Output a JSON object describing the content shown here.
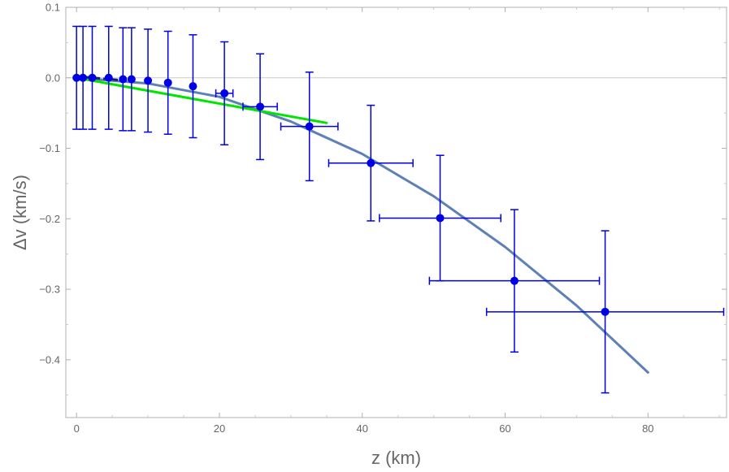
{
  "chart_data": {
    "type": "scatter",
    "title": "",
    "xlabel": "z (km)",
    "ylabel": "Δv (km/s)",
    "xlim": [
      -1.5,
      91
    ],
    "ylim": [
      -0.482,
      0.1
    ],
    "x_ticks": [
      0,
      20,
      40,
      60,
      80
    ],
    "x_tick_labels": [
      "0",
      "20",
      "40",
      "60",
      "80"
    ],
    "y_ticks": [
      0.1,
      0.0,
      -0.1,
      -0.2,
      -0.3,
      -0.4
    ],
    "y_tick_labels": [
      "0.1",
      "0.0",
      "−0.1",
      "−0.2",
      "−0.3",
      "−0.4"
    ],
    "grid": false,
    "frame": true,
    "colors": {
      "points": "#0000e6",
      "fit_curve": "#5e81b5",
      "linear_fit": "#00e600",
      "dashed_segment": "#1a1a80",
      "zero_line": "#cccccc"
    },
    "series": [
      {
        "type": "points_with_error_bars",
        "points": [
          {
            "x": 0.0,
            "y": 0.0,
            "xerr": 0.0,
            "yerr": 0.073
          },
          {
            "x": 0.9,
            "y": 0.0,
            "xerr": 0.0,
            "yerr": 0.073
          },
          {
            "x": 2.2,
            "y": 0.0,
            "xerr": 0.0,
            "yerr": 0.073
          },
          {
            "x": 4.5,
            "y": 0.0,
            "xerr": 0.0,
            "yerr": 0.073
          },
          {
            "x": 6.5,
            "y": -0.002,
            "xerr": 0.0,
            "yerr": 0.073
          },
          {
            "x": 7.7,
            "y": -0.002,
            "xerr": 0.0,
            "yerr": 0.073
          },
          {
            "x": 10.0,
            "y": -0.004,
            "xerr": 0.0,
            "yerr": 0.073
          },
          {
            "x": 12.8,
            "y": -0.007,
            "xerr": 0.0,
            "yerr": 0.073
          },
          {
            "x": 16.3,
            "y": -0.012,
            "xerr": 0.0,
            "yerr": 0.073
          },
          {
            "x": 20.7,
            "y": -0.022,
            "xerr": 1.2,
            "yerr": 0.073
          },
          {
            "x": 25.7,
            "y": -0.041,
            "xerr": 2.4,
            "yerr": 0.075
          },
          {
            "x": 32.6,
            "y": -0.069,
            "xerr": 4.0,
            "yerr": 0.077
          },
          {
            "x": 41.2,
            "y": -0.121,
            "xerr": 5.9,
            "yerr": 0.082
          },
          {
            "x": 50.9,
            "y": -0.199,
            "xerr": 8.5,
            "yerr": 0.089
          },
          {
            "x": 61.3,
            "y": -0.288,
            "xerr": 11.9,
            "yerr": 0.101
          },
          {
            "x": 74.0,
            "y": -0.332,
            "xerr": 16.6,
            "yerr": 0.115
          }
        ]
      },
      {
        "type": "curve",
        "description_key": "fit_curve",
        "x": [
          0,
          10,
          20,
          30,
          40,
          50,
          60,
          70,
          80
        ],
        "y": [
          0.0,
          -0.008,
          -0.027,
          -0.062,
          -0.108,
          -0.168,
          -0.24,
          -0.323,
          -0.418
        ]
      },
      {
        "type": "line",
        "description_key": "linear_fit",
        "x": [
          0,
          35
        ],
        "y": [
          0.0,
          -0.064
        ]
      },
      {
        "type": "dashed_line",
        "description_key": "dashed_segment",
        "x": [
          0,
          7
        ],
        "y": [
          0.002,
          -0.004
        ]
      }
    ]
  }
}
